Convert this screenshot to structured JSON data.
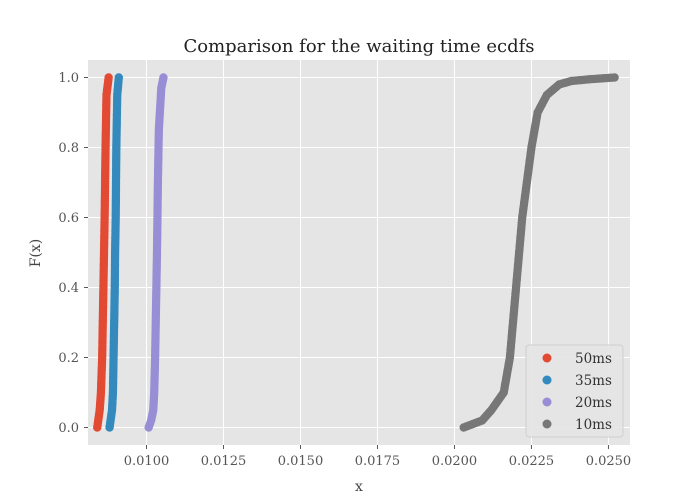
{
  "chart_data": {
    "type": "scatter",
    "title": "Comparison for the waiting time ecdfs",
    "xlabel": "x",
    "ylabel": "F(x)",
    "xlim": [
      0.0081,
      0.0257
    ],
    "ylim": [
      -0.05,
      1.05
    ],
    "xticks": [
      {
        "value": 0.01,
        "label": "0.0100"
      },
      {
        "value": 0.0125,
        "label": "0.0125"
      },
      {
        "value": 0.015,
        "label": "0.0150"
      },
      {
        "value": 0.0175,
        "label": "0.0175"
      },
      {
        "value": 0.02,
        "label": "0.0200"
      },
      {
        "value": 0.0225,
        "label": "0.0225"
      },
      {
        "value": 0.025,
        "label": "0.0250"
      }
    ],
    "yticks": [
      {
        "value": 0.0,
        "label": "0.0"
      },
      {
        "value": 0.2,
        "label": "0.2"
      },
      {
        "value": 0.4,
        "label": "0.4"
      },
      {
        "value": 0.6,
        "label": "0.6"
      },
      {
        "value": 0.8,
        "label": "0.8"
      },
      {
        "value": 1.0,
        "label": "1.0"
      }
    ],
    "grid": true,
    "legend_position": "bottom-right",
    "series": [
      {
        "name": "50ms",
        "color": "#E24A33",
        "x": [
          0.0084,
          0.00848,
          0.00852,
          0.00856,
          0.00858,
          0.0086,
          0.00862,
          0.00864,
          0.00867,
          0.0087,
          0.00877
        ],
        "y": [
          0.0,
          0.05,
          0.1,
          0.2,
          0.3,
          0.4,
          0.5,
          0.6,
          0.8,
          0.95,
          1.0
        ]
      },
      {
        "name": "35ms",
        "color": "#348ABD",
        "x": [
          0.0088,
          0.00888,
          0.00891,
          0.00893,
          0.00895,
          0.00897,
          0.00898,
          0.009,
          0.00902,
          0.00905,
          0.0091
        ],
        "y": [
          0.0,
          0.05,
          0.1,
          0.2,
          0.3,
          0.4,
          0.5,
          0.6,
          0.8,
          0.95,
          1.0
        ]
      },
      {
        "name": "20ms",
        "color": "#988ED5",
        "x": [
          0.01007,
          0.01015,
          0.01022,
          0.01025,
          0.01028,
          0.0103,
          0.01032,
          0.01034,
          0.01037,
          0.0104,
          0.01048,
          0.01055
        ],
        "y": [
          0.0,
          0.02,
          0.05,
          0.1,
          0.2,
          0.3,
          0.4,
          0.5,
          0.7,
          0.85,
          0.97,
          1.0
        ]
      },
      {
        "name": "10ms",
        "color": "#777777",
        "x": [
          0.0203,
          0.0206,
          0.0209,
          0.0212,
          0.0216,
          0.0218,
          0.0219,
          0.022,
          0.0221,
          0.0222,
          0.02235,
          0.0225,
          0.0227,
          0.023,
          0.0234,
          0.0238,
          0.0244,
          0.0252
        ],
        "y": [
          0.0,
          0.01,
          0.02,
          0.05,
          0.1,
          0.2,
          0.3,
          0.4,
          0.5,
          0.6,
          0.7,
          0.8,
          0.9,
          0.95,
          0.98,
          0.99,
          0.995,
          1.0
        ]
      }
    ]
  }
}
